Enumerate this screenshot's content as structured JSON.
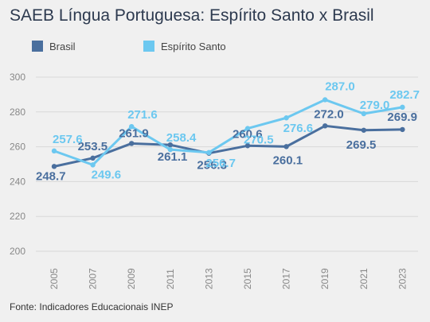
{
  "title": "SAEB Língua Portuguesa: Espírito Santo x Brasil",
  "source": "Fonte: Indicadores Educacionais INEP",
  "colors": {
    "brasil": "#4a6f9e",
    "espirito_santo": "#6cc8f0",
    "grid": "#d8d8d8",
    "axis_text": "#888888"
  },
  "chart_data": {
    "type": "line",
    "title": "SAEB Língua Portuguesa: Espírito Santo x Brasil",
    "x": [
      "2005",
      "2007",
      "2009",
      "2011",
      "2013",
      "2015",
      "2017",
      "2019",
      "2021",
      "2023"
    ],
    "y_ticks": [
      "200",
      "220",
      "240",
      "260",
      "280",
      "300"
    ],
    "ylim": [
      200,
      300
    ],
    "grid": true,
    "legend_position": "top-left",
    "series": [
      {
        "name": "Brasil",
        "color": "#4a6f9e",
        "values": [
          248.7,
          253.5,
          261.9,
          261.1,
          256.3,
          260.6,
          260.1,
          272.0,
          269.5,
          269.9
        ],
        "labels": [
          "248.7",
          "253.5",
          "261.9",
          "261.1",
          "256.3",
          "260.6",
          "260.1",
          "272.0",
          "269.5",
          "269.9"
        ]
      },
      {
        "name": "Espírito Santo",
        "color": "#6cc8f0",
        "values": [
          257.6,
          249.6,
          271.6,
          258.4,
          256.7,
          270.5,
          276.6,
          287.0,
          279.0,
          282.7
        ],
        "labels": [
          "257.6",
          "249.6",
          "271.6",
          "258.4",
          "256.7",
          "270.5",
          "276.6",
          "287.0",
          "279.0",
          "282.7"
        ]
      }
    ]
  }
}
